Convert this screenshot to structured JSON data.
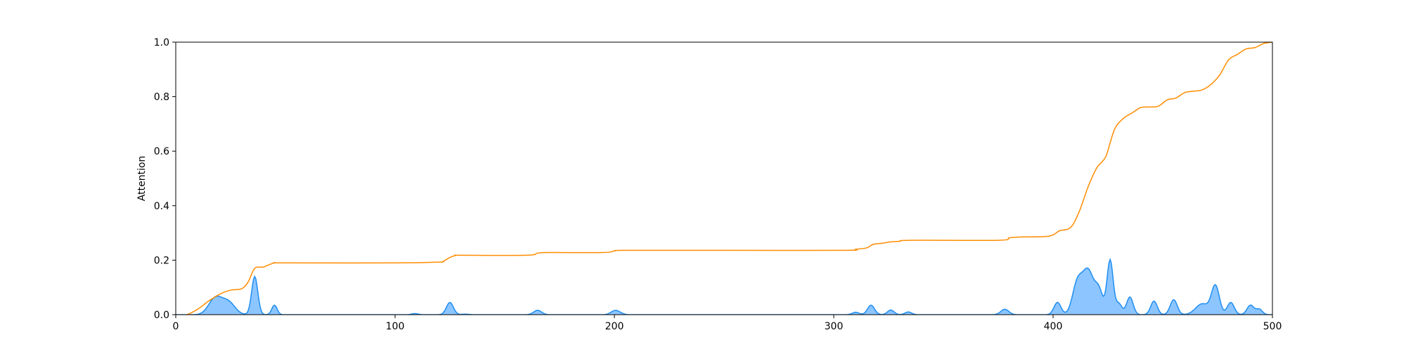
{
  "chart_data": {
    "type": "area",
    "title": "",
    "xlabel": "",
    "ylabel": "Attention",
    "xlim": [
      0,
      500
    ],
    "ylim": [
      0,
      1.0
    ],
    "xticks": [
      "0",
      "100",
      "200",
      "300",
      "400",
      "500"
    ],
    "yticks": [
      "0.0",
      "0.2",
      "0.4",
      "0.6",
      "0.8",
      "1.0"
    ],
    "grid": false,
    "legend": "none",
    "series": [
      {
        "kind": "attention-peaks",
        "color": "#1f8ef1",
        "fill": "#8cc5ff",
        "peaks": [
          [
            18,
            0.06,
            3
          ],
          [
            24,
            0.045,
            3
          ],
          [
            36,
            0.14,
            1.4
          ],
          [
            45,
            0.035,
            1.2
          ],
          [
            109,
            0.004,
            1.5
          ],
          [
            125,
            0.045,
            1.6
          ],
          [
            132,
            0.002,
            1.5
          ],
          [
            165,
            0.016,
            1.8
          ],
          [
            200,
            0.012,
            1.8
          ],
          [
            202,
            0.006,
            1.8
          ],
          [
            310,
            0.009,
            1.5
          ],
          [
            317,
            0.035,
            1.6
          ],
          [
            326,
            0.017,
            1.5
          ],
          [
            334,
            0.01,
            1.5
          ],
          [
            378,
            0.02,
            1.8
          ],
          [
            402,
            0.045,
            1.6
          ],
          [
            411,
            0.11,
            2.2
          ],
          [
            416,
            0.16,
            2.6
          ],
          [
            421,
            0.08,
            1.8
          ],
          [
            426,
            0.2,
            1.4
          ],
          [
            430,
            0.04,
            1.4
          ],
          [
            435,
            0.065,
            1.5
          ],
          [
            446,
            0.05,
            1.5
          ],
          [
            455,
            0.055,
            1.6
          ],
          [
            468,
            0.04,
            3
          ],
          [
            474,
            0.105,
            1.8
          ],
          [
            481,
            0.045,
            1.6
          ],
          [
            490,
            0.035,
            1.6
          ],
          [
            494,
            0.02,
            1.4
          ]
        ]
      },
      {
        "kind": "cumulative",
        "color": "#ff8c00",
        "x": [
          0,
          5,
          10,
          15,
          20,
          25,
          30,
          33,
          36,
          40,
          45,
          50,
          100,
          120,
          122,
          125,
          128,
          130,
          160,
          165,
          170,
          195,
          200,
          205,
          250,
          305,
          310,
          315,
          318,
          322,
          326,
          330,
          335,
          375,
          380,
          385,
          398,
          403,
          408,
          412,
          416,
          420,
          424,
          428,
          432,
          436,
          440,
          444,
          448,
          452,
          456,
          460,
          464,
          468,
          472,
          476,
          480,
          484,
          488,
          492,
          496,
          500
        ],
        "y": [
          0.0,
          0.0,
          0.02,
          0.05,
          0.075,
          0.09,
          0.095,
          0.12,
          0.17,
          0.175,
          0.19,
          0.19,
          0.19,
          0.193,
          0.196,
          0.21,
          0.218,
          0.218,
          0.218,
          0.226,
          0.228,
          0.228,
          0.234,
          0.236,
          0.236,
          0.236,
          0.24,
          0.245,
          0.258,
          0.262,
          0.267,
          0.269,
          0.273,
          0.273,
          0.282,
          0.285,
          0.288,
          0.308,
          0.32,
          0.38,
          0.47,
          0.54,
          0.58,
          0.68,
          0.72,
          0.74,
          0.76,
          0.762,
          0.765,
          0.788,
          0.795,
          0.815,
          0.82,
          0.825,
          0.845,
          0.88,
          0.935,
          0.955,
          0.975,
          0.98,
          0.995,
          1.0
        ]
      }
    ]
  }
}
